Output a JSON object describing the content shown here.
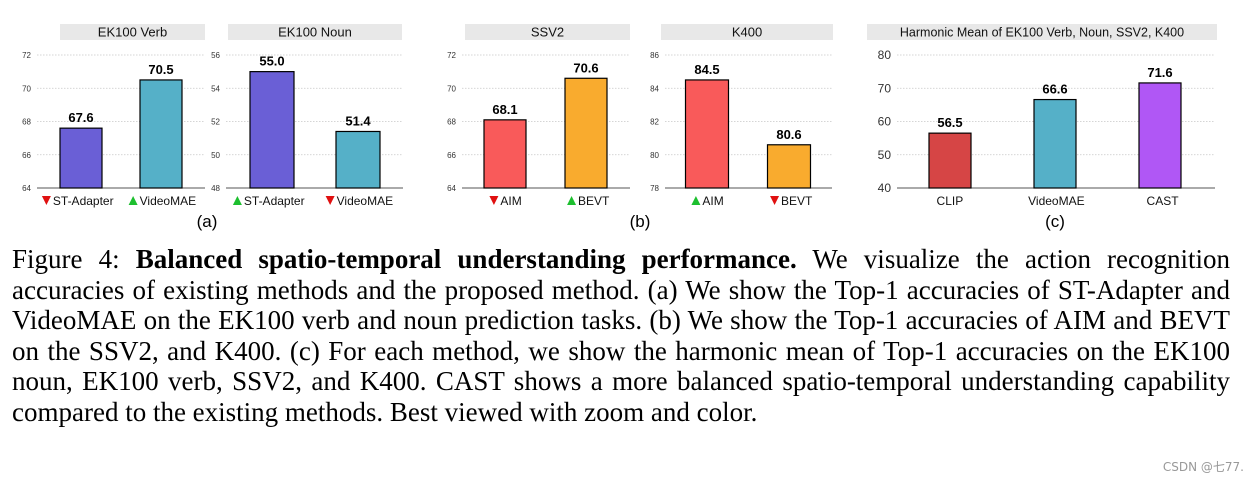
{
  "chart_data": [
    {
      "type": "bar",
      "title": "EK100 Verb",
      "categories": [
        "ST-Adapter",
        "VideoMAE"
      ],
      "values": [
        67.6,
        70.5
      ],
      "markers": [
        "down",
        "up"
      ],
      "colors": [
        "#6a5fd6",
        "#55b0c8"
      ],
      "ylim": [
        64,
        72
      ],
      "yticks": [
        64,
        66,
        68,
        70,
        72
      ],
      "value_labels": [
        "67.6",
        "70.5"
      ]
    },
    {
      "type": "bar",
      "title": "EK100 Noun",
      "categories": [
        "ST-Adapter",
        "VideoMAE"
      ],
      "values": [
        55.0,
        51.4
      ],
      "markers": [
        "up",
        "down"
      ],
      "colors": [
        "#6a5fd6",
        "#55b0c8"
      ],
      "ylim": [
        48,
        56
      ],
      "yticks": [
        48,
        50,
        52,
        54,
        56
      ],
      "value_labels": [
        "55.0",
        "51.4"
      ]
    },
    {
      "type": "bar",
      "title": "SSV2",
      "categories": [
        "AIM",
        "BEVT"
      ],
      "values": [
        68.1,
        70.6
      ],
      "markers": [
        "down",
        "up"
      ],
      "colors": [
        "#f95a5a",
        "#f9ab2e"
      ],
      "ylim": [
        64,
        72
      ],
      "yticks": [
        64,
        66,
        68,
        70,
        72
      ],
      "value_labels": [
        "68.1",
        "70.6"
      ]
    },
    {
      "type": "bar",
      "title": "K400",
      "categories": [
        "AIM",
        "BEVT"
      ],
      "values": [
        84.5,
        80.6
      ],
      "markers": [
        "up",
        "down"
      ],
      "colors": [
        "#f95a5a",
        "#f9ab2e"
      ],
      "ylim": [
        78,
        86
      ],
      "yticks": [
        78,
        80,
        82,
        84,
        86
      ],
      "value_labels": [
        "84.5",
        "80.6"
      ]
    },
    {
      "type": "bar",
      "title": "Harmonic Mean of EK100 Verb, Noun, SSV2, K400",
      "categories": [
        "CLIP",
        "VideoMAE",
        "CAST"
      ],
      "values": [
        56.5,
        66.6,
        71.6
      ],
      "markers": [
        null,
        null,
        null
      ],
      "colors": [
        "#d64545",
        "#55b0c8",
        "#b057f5"
      ],
      "ylim": [
        40,
        80
      ],
      "yticks": [
        40,
        50,
        60,
        70,
        80
      ],
      "value_labels": [
        "56.5",
        "66.6",
        "71.6"
      ]
    }
  ],
  "panel_labels": [
    "(a)",
    "(b)",
    "(c)"
  ],
  "caption": {
    "prefix": "Figure 4: ",
    "bold": "Balanced spatio-temporal understanding performance.",
    "body": " We visualize the action recognition accuracies of existing methods and the proposed method. (a) We show the Top-1 accuracies of ST-Adapter and VideoMAE on the EK100 verb and noun prediction tasks. (b) We show the Top-1 accuracies of AIM and BEVT on the SSV2, and K400. (c) For each method, we show the harmonic mean of Top-1 accuracies on the EK100 noun, EK100 verb, SSV2, and K400. CAST shows a more balanced spatio-temporal understanding capability compared to the existing methods. Best viewed with zoom and color."
  },
  "watermark": "CSDN @七77.",
  "colors": {
    "up_marker": "#1dbf2f",
    "down_marker": "#e01010",
    "title_bg": "#e8e8e8",
    "grid": "#c8c8c8"
  }
}
